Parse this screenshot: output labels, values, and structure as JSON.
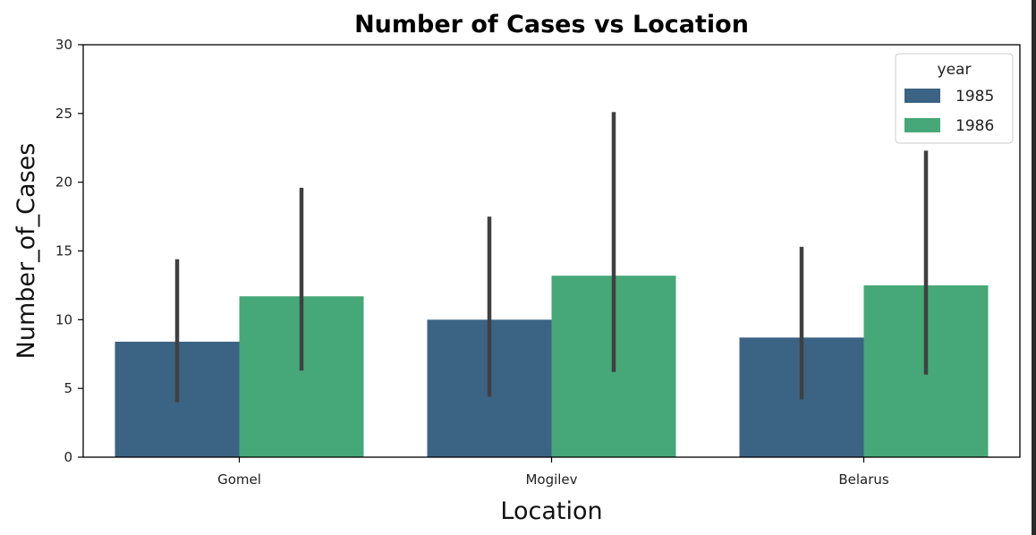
{
  "chart_data": {
    "type": "bar",
    "title": "Number of Cases vs Location",
    "xlabel": "Location",
    "ylabel": "Number_of_Cases",
    "categories": [
      "Gomel",
      "Mogilev",
      "Belarus"
    ],
    "ylim": [
      0,
      30
    ],
    "yticks": [
      0,
      5,
      10,
      15,
      20,
      25,
      30
    ],
    "grid": false,
    "legend": {
      "title": "year",
      "placement": "top-right"
    },
    "series": [
      {
        "name": "1985",
        "color": "#3b6384",
        "values": [
          8.4,
          10.0,
          8.7
        ],
        "err_low": [
          4.0,
          4.4,
          4.2
        ],
        "err_high": [
          14.4,
          17.5,
          15.3
        ]
      },
      {
        "name": "1986",
        "color": "#46a878",
        "values": [
          11.7,
          13.2,
          12.5
        ],
        "err_low": [
          6.3,
          6.2,
          6.0
        ],
        "err_high": [
          19.6,
          25.1,
          22.3
        ]
      }
    ],
    "errorbar_color": "#404040"
  }
}
